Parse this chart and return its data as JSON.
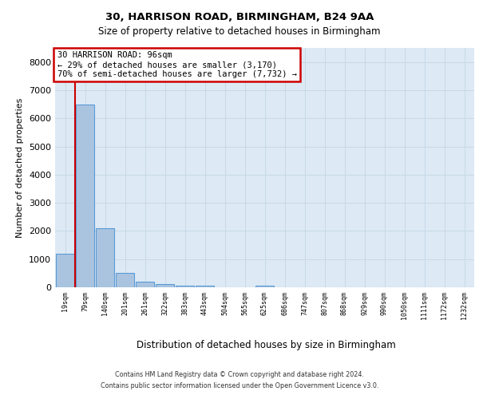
{
  "title1": "30, HARRISON ROAD, BIRMINGHAM, B24 9AA",
  "title2": "Size of property relative to detached houses in Birmingham",
  "xlabel": "Distribution of detached houses by size in Birmingham",
  "ylabel": "Number of detached properties",
  "categories": [
    "19sqm",
    "79sqm",
    "140sqm",
    "201sqm",
    "261sqm",
    "322sqm",
    "383sqm",
    "443sqm",
    "504sqm",
    "565sqm",
    "625sqm",
    "686sqm",
    "747sqm",
    "807sqm",
    "868sqm",
    "929sqm",
    "990sqm",
    "1050sqm",
    "1111sqm",
    "1172sqm",
    "1232sqm"
  ],
  "values": [
    1200,
    6500,
    2100,
    500,
    200,
    100,
    50,
    50,
    0,
    0,
    50,
    0,
    0,
    0,
    0,
    0,
    0,
    0,
    0,
    0,
    0
  ],
  "bar_color": "#aac4e0",
  "bar_edge_color": "#5b9bd5",
  "vline_x": 0.5,
  "annotation_text": "30 HARRISON ROAD: 96sqm\n← 29% of detached houses are smaller (3,170)\n70% of semi-detached houses are larger (7,732) →",
  "annotation_box_color": "#ffffff",
  "annotation_box_edge_color": "#cc0000",
  "vline_color": "#cc0000",
  "ylim": [
    0,
    8500
  ],
  "yticks": [
    0,
    1000,
    2000,
    3000,
    4000,
    5000,
    6000,
    7000,
    8000
  ],
  "grid_color": "#c8d8e8",
  "bg_color": "#ddeaf5",
  "footer1": "Contains HM Land Registry data © Crown copyright and database right 2024.",
  "footer2": "Contains public sector information licensed under the Open Government Licence v3.0."
}
